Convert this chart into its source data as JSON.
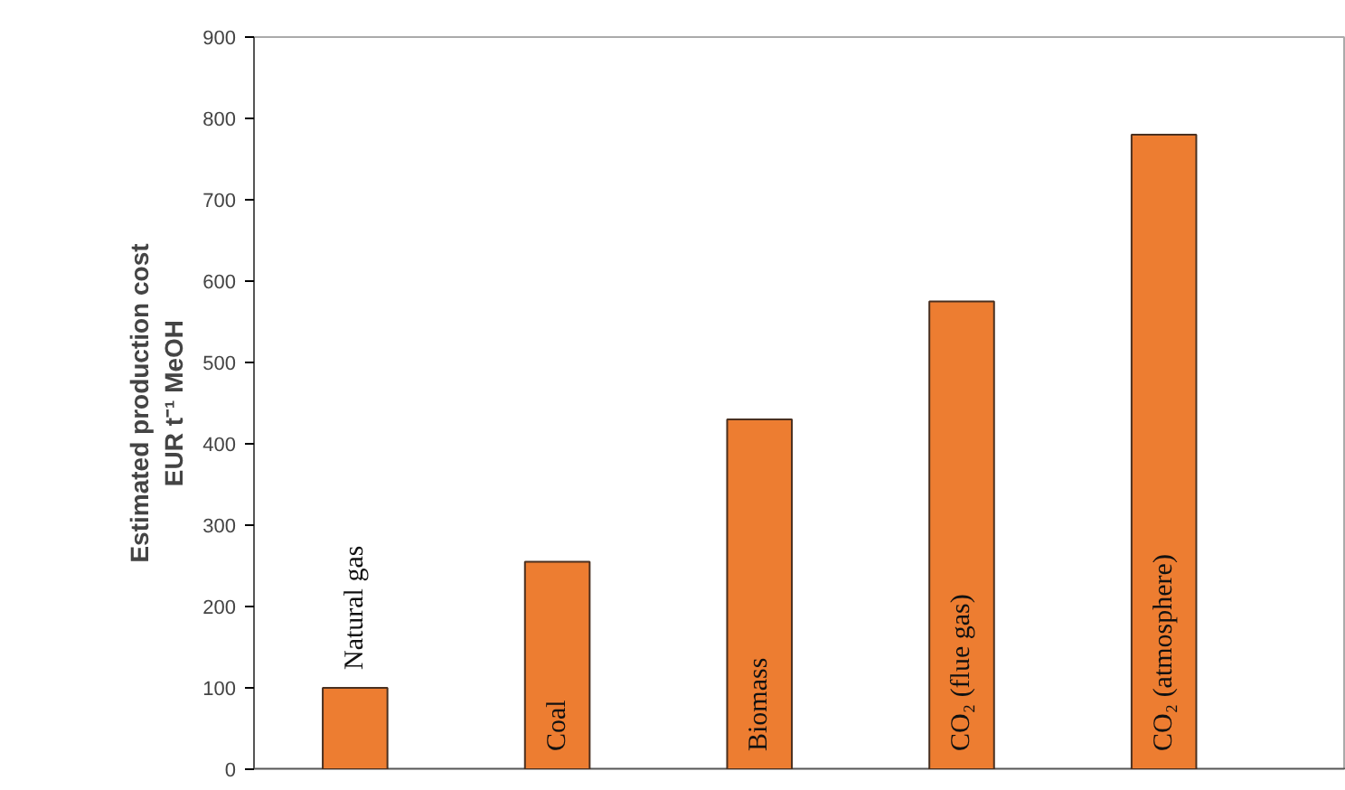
{
  "chart_data": {
    "type": "bar",
    "ylabel": "Estimated production cost\nEUR t⁻¹ MeOH",
    "categories": [
      "Natural gas",
      "Coal",
      "Biomass",
      "CO₂ (flue gas)",
      "CO₂ (atmosphere)"
    ],
    "values": [
      100,
      255,
      430,
      575,
      780
    ],
    "color": "#ed7d31",
    "ylim": [
      0,
      900
    ],
    "yticks": [
      0,
      100,
      200,
      300,
      400,
      500,
      600,
      700,
      800,
      900
    ],
    "grid": false
  }
}
